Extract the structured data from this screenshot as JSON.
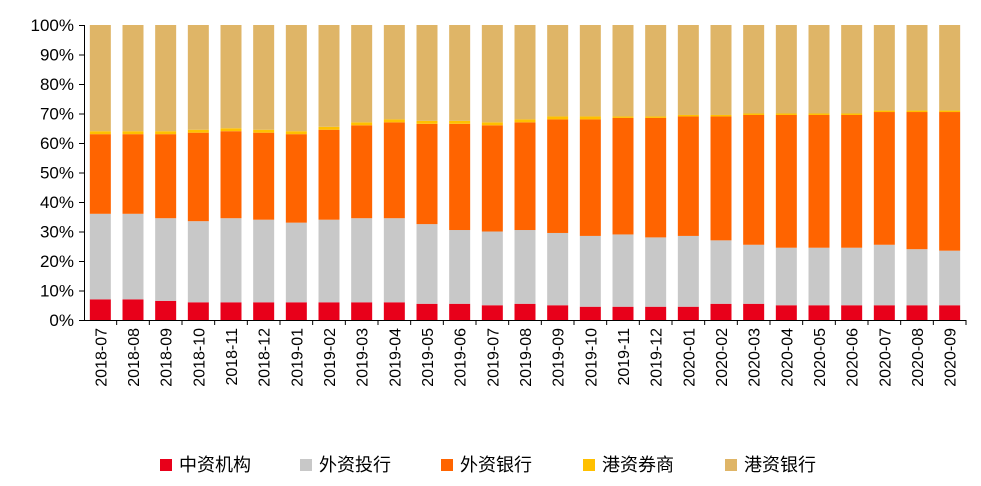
{
  "chart_data": {
    "type": "bar",
    "stacked": true,
    "normalized": true,
    "categories": [
      "2018-07",
      "2018-08",
      "2018-09",
      "2018-10",
      "2018-11",
      "2018-12",
      "2019-01",
      "2019-02",
      "2019-03",
      "2019-04",
      "2019-05",
      "2019-06",
      "2019-07",
      "2019-08",
      "2019-09",
      "2019-10",
      "2019-11",
      "2019-12",
      "2020-01",
      "2020-02",
      "2020-03",
      "2020-04",
      "2020-05",
      "2020-06",
      "2020-07",
      "2020-08",
      "2020-09"
    ],
    "ylim": [
      0,
      100
    ],
    "yticks": [
      "0%",
      "10%",
      "20%",
      "30%",
      "40%",
      "50%",
      "60%",
      "70%",
      "80%",
      "90%",
      "100%"
    ],
    "legend_position": "bottom",
    "series": [
      {
        "name": "中资机构",
        "color": "#e8001a",
        "values": [
          7.0,
          7.0,
          6.5,
          6.0,
          6.0,
          6.0,
          6.0,
          6.0,
          6.0,
          6.0,
          5.5,
          5.5,
          5.0,
          5.5,
          5.0,
          4.5,
          4.5,
          4.5,
          4.5,
          5.5,
          5.5,
          5.0,
          5.0,
          5.0,
          5.0,
          5.0,
          5.0
        ]
      },
      {
        "name": "外资投行",
        "color": "#c8c8c8",
        "values": [
          29.0,
          29.0,
          28.0,
          27.5,
          28.5,
          28.0,
          27.0,
          28.0,
          28.5,
          28.5,
          27.0,
          25.0,
          25.0,
          25.0,
          24.5,
          24.0,
          24.5,
          23.5,
          24.0,
          21.5,
          20.0,
          19.5,
          19.5,
          19.5,
          20.5,
          19.0,
          18.5
        ]
      },
      {
        "name": "外资银行",
        "color": "#ff6400",
        "values": [
          27.0,
          27.0,
          28.5,
          30.0,
          29.5,
          29.5,
          30.0,
          30.5,
          31.5,
          32.5,
          34.0,
          36.0,
          36.0,
          36.5,
          38.5,
          39.5,
          39.5,
          40.5,
          40.5,
          42.0,
          44.0,
          45.0,
          45.0,
          45.0,
          45.0,
          46.5,
          47.0
        ]
      },
      {
        "name": "港资券商",
        "color": "#ffc000",
        "values": [
          1.0,
          1.0,
          1.0,
          1.0,
          1.0,
          1.0,
          1.0,
          1.0,
          1.0,
          1.0,
          1.0,
          1.0,
          1.0,
          1.0,
          1.0,
          1.0,
          0.5,
          0.5,
          0.5,
          0.5,
          0.5,
          0.5,
          0.5,
          0.5,
          0.5,
          0.5,
          0.5
        ]
      },
      {
        "name": "港资银行",
        "color": "#dfb567",
        "values": [
          36.0,
          36.0,
          36.0,
          35.5,
          35.0,
          35.5,
          36.0,
          34.5,
          33.0,
          32.0,
          32.5,
          32.5,
          33.0,
          32.0,
          31.0,
          31.0,
          31.0,
          31.0,
          30.5,
          30.5,
          30.0,
          30.0,
          30.0,
          30.0,
          29.0,
          29.0,
          29.0
        ]
      }
    ]
  }
}
